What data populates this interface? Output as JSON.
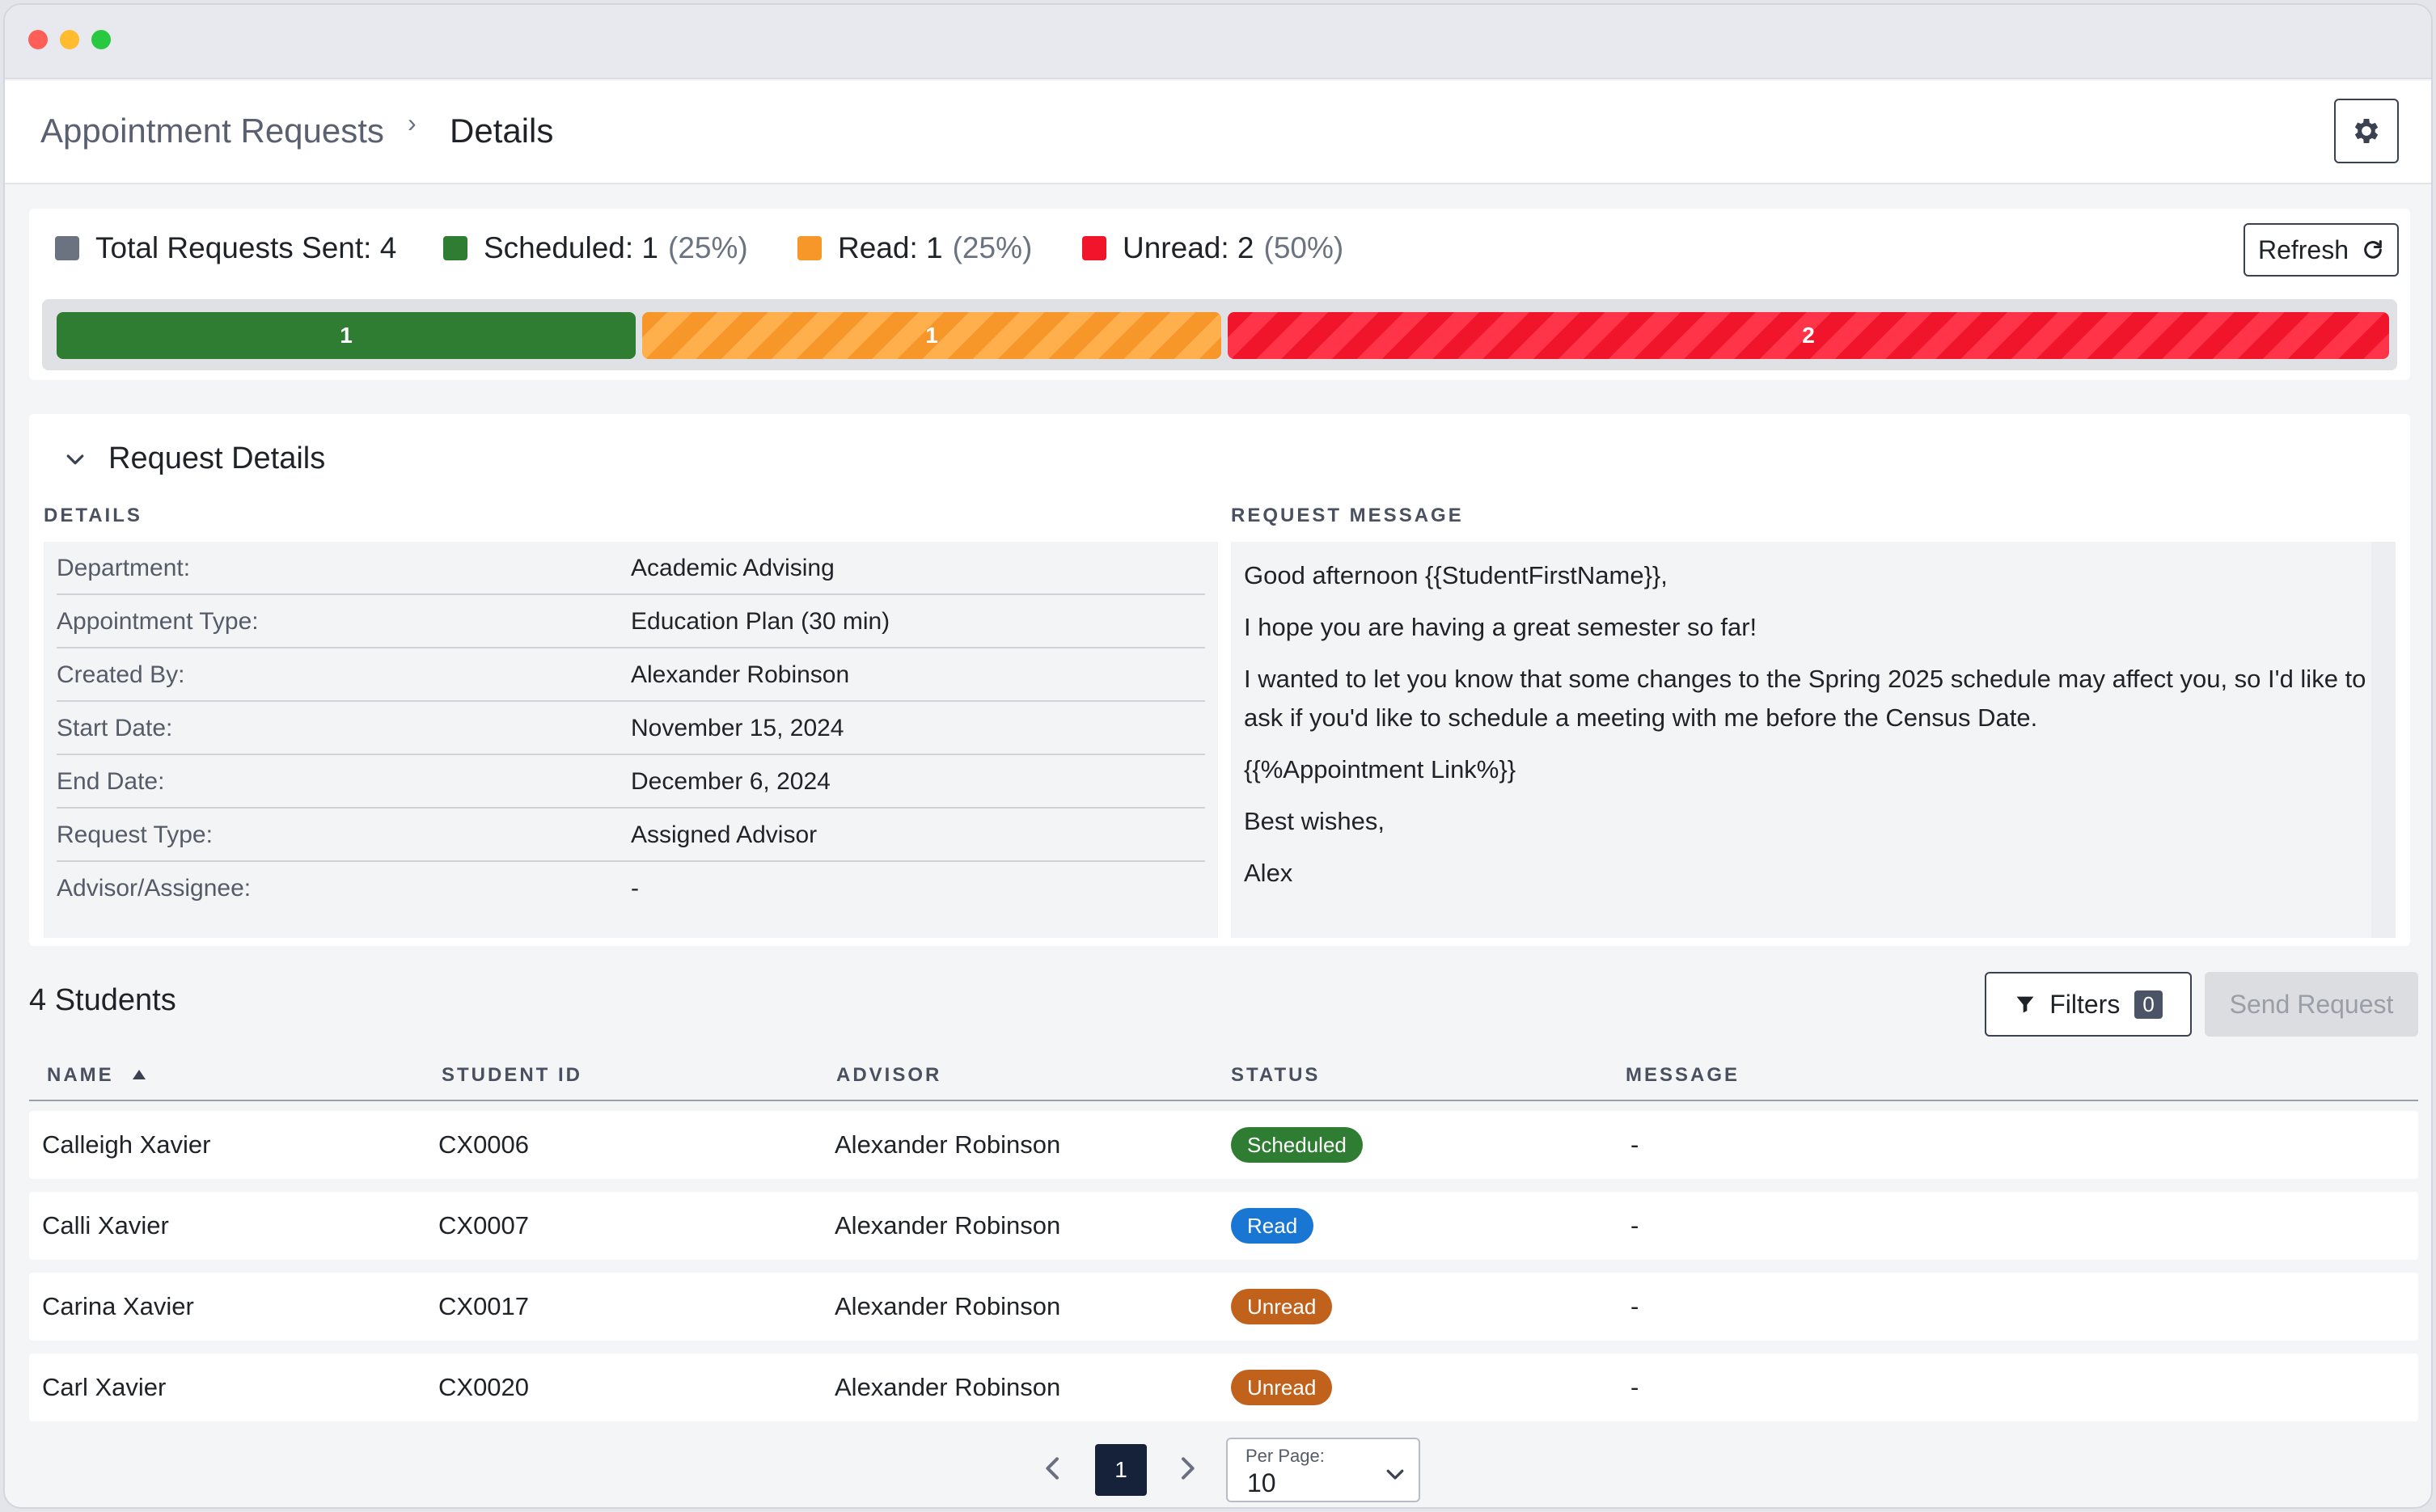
{
  "breadcrumb": {
    "parent": "Appointment Requests",
    "separator": "›",
    "current": "Details"
  },
  "header": {
    "settings_icon": "gear-icon"
  },
  "summary": {
    "total_label": "Total Requests Sent: 4",
    "scheduled_label": "Scheduled: 1",
    "scheduled_pct": "(25%)",
    "read_label": "Read: 1",
    "read_pct": "(25%)",
    "unread_label": "Unread: 2",
    "unread_pct": "(50%)",
    "refresh_label": "Refresh",
    "colors": {
      "total": "#6b7280",
      "scheduled": "#2e7d32",
      "read": "#f7972a",
      "unread": "#f0152b"
    },
    "bar": {
      "scheduled": "1",
      "read": "1",
      "unread": "2"
    }
  },
  "details_panel": {
    "title": "Request Details",
    "details_heading": "DETAILS",
    "message_heading": "REQUEST MESSAGE",
    "rows": [
      {
        "key": "Department:",
        "value": "Academic Advising"
      },
      {
        "key": "Appointment Type:",
        "value": "Education Plan (30 min)"
      },
      {
        "key": "Created By:",
        "value": "Alexander Robinson"
      },
      {
        "key": "Start Date:",
        "value": "November 15, 2024"
      },
      {
        "key": "End Date:",
        "value": "December 6, 2024"
      },
      {
        "key": "Request Type:",
        "value": "Assigned Advisor"
      },
      {
        "key": "Advisor/Assignee:",
        "value": "-"
      }
    ],
    "message": [
      "Good afternoon {{StudentFirstName}},",
      "I hope you are having a great semester so far!",
      "I wanted to let you know that some changes to the Spring 2025 schedule may affect you, so I'd like to ask if you'd like to schedule a meeting with me before the Census Date.",
      "{{%Appointment Link%}}",
      "Best wishes,",
      "Alex"
    ]
  },
  "students": {
    "title": "4 Students",
    "filters_label": "Filters",
    "filters_count": "0",
    "send_label": "Send Request",
    "columns": [
      "NAME",
      "STUDENT ID",
      "ADVISOR",
      "STATUS",
      "MESSAGE"
    ],
    "rows": [
      {
        "name": "Calleigh Xavier",
        "id": "CX0006",
        "advisor": "Alexander Robinson",
        "status": "Scheduled",
        "message": "-"
      },
      {
        "name": "Calli Xavier",
        "id": "CX0007",
        "advisor": "Alexander Robinson",
        "status": "Read",
        "message": "-"
      },
      {
        "name": "Carina Xavier",
        "id": "CX0017",
        "advisor": "Alexander Robinson",
        "status": "Unread",
        "message": "-"
      },
      {
        "name": "Carl Xavier",
        "id": "CX0020",
        "advisor": "Alexander Robinson",
        "status": "Unread",
        "message": "-"
      }
    ]
  },
  "pagination": {
    "current_page": "1",
    "per_page_label": "Per Page:",
    "per_page_value": "10"
  }
}
